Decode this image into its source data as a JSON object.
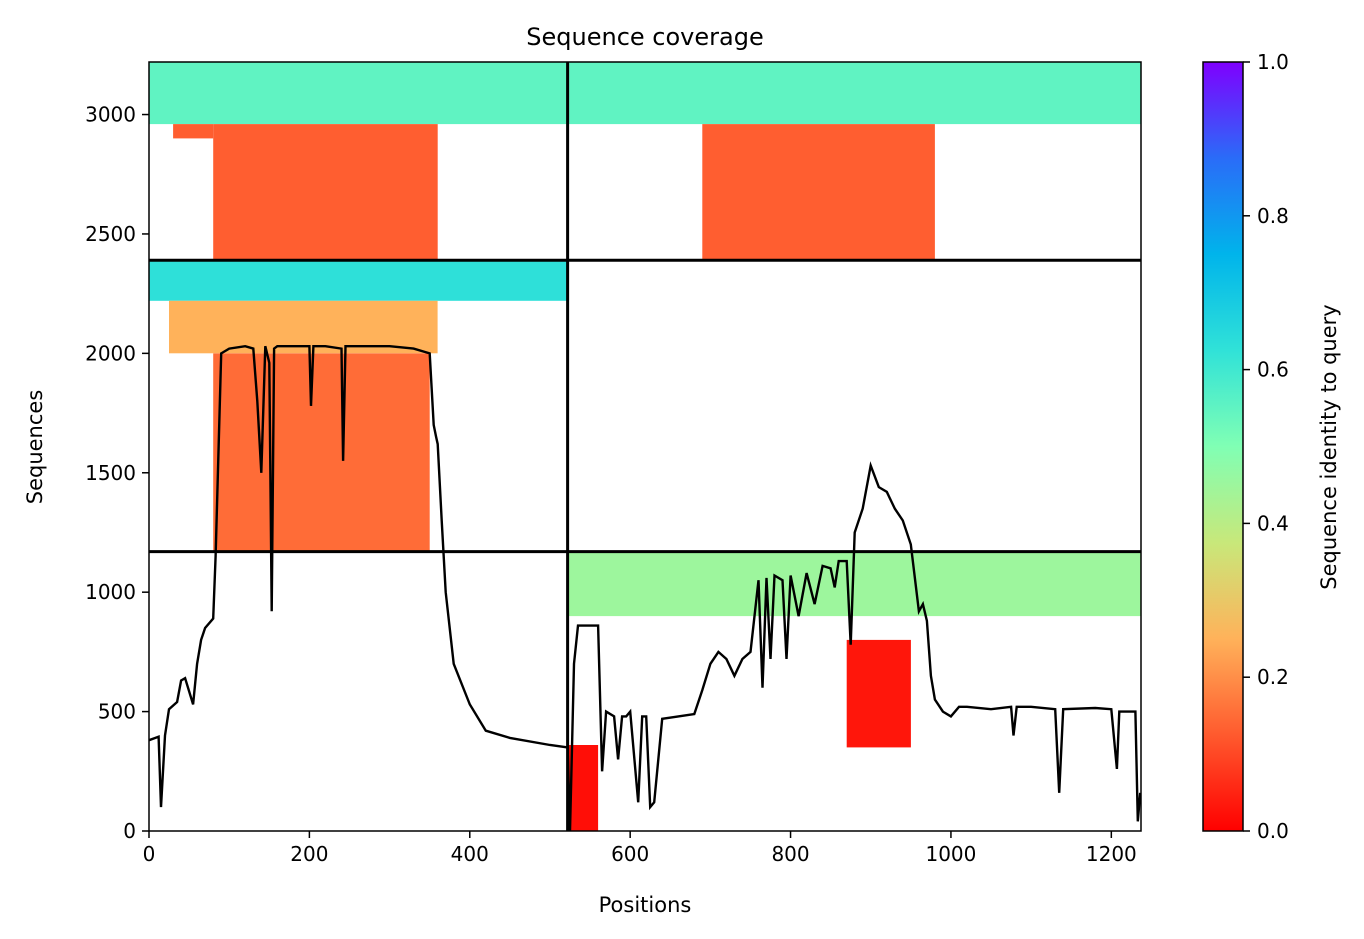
{
  "chart_data": {
    "type": "heatmap",
    "title": "Sequence coverage",
    "xlabel": "Positions",
    "ylabel": "Sequences",
    "xlim": [
      0,
      1237
    ],
    "ylim": [
      0,
      3220
    ],
    "xticks": [
      0,
      200,
      400,
      600,
      800,
      1000,
      1200
    ],
    "yticks": [
      0,
      500,
      1000,
      1500,
      2000,
      2500,
      3000
    ],
    "colorbar": {
      "label": "Sequence identity to query",
      "colormap": "rainbow_r",
      "range": [
        0,
        1
      ],
      "ticks": [
        "0.0",
        "0.2",
        "0.4",
        "0.6",
        "0.8",
        "1.0"
      ]
    },
    "chain_boundaries": {
      "x": [
        522
      ],
      "y": [
        1170,
        2390
      ]
    },
    "blocks": [
      {
        "name": "chain-A-self-high",
        "x": [
          0,
          522
        ],
        "y": [
          2960,
          3220
        ],
        "identity": 0.55
      },
      {
        "name": "chain-A-self-low",
        "x": [
          80,
          360
        ],
        "y": [
          2390,
          2960
        ],
        "identity": 0.13
      },
      {
        "name": "chain-A-self-edge",
        "x": [
          30,
          80
        ],
        "y": [
          2900,
          2960
        ],
        "identity": 0.13
      },
      {
        "name": "chain-A-crossB-high",
        "x": [
          522,
          1237
        ],
        "y": [
          2960,
          3220
        ],
        "identity": 0.55
      },
      {
        "name": "chain-A-crossB-low",
        "x": [
          690,
          980
        ],
        "y": [
          2390,
          2960
        ],
        "identity": 0.13
      },
      {
        "name": "chain-B-high",
        "x": [
          0,
          522
        ],
        "y": [
          2220,
          2390
        ],
        "identity": 0.63
      },
      {
        "name": "chain-B-mid",
        "x": [
          25,
          360
        ],
        "y": [
          2000,
          2220
        ],
        "identity": 0.25
      },
      {
        "name": "chain-B-low",
        "x": [
          80,
          350
        ],
        "y": [
          1170,
          2000
        ],
        "identity": 0.15
      },
      {
        "name": "chain-C-high",
        "x": [
          522,
          1237
        ],
        "y": [
          900,
          1170
        ],
        "identity": 0.45
      },
      {
        "name": "chain-C-low-1",
        "x": [
          522,
          560
        ],
        "y": [
          0,
          360
        ],
        "identity": 0.02
      },
      {
        "name": "chain-C-low-2",
        "x": [
          870,
          950
        ],
        "y": [
          350,
          800
        ],
        "identity": 0.03
      }
    ],
    "coverage_line": {
      "name": "coverage",
      "color": "#000000",
      "x": [
        0,
        8,
        12,
        15,
        20,
        25,
        35,
        40,
        45,
        55,
        60,
        65,
        70,
        80,
        83,
        90,
        100,
        120,
        130,
        135,
        140,
        145,
        150,
        153,
        156,
        160,
        180,
        200,
        202,
        205,
        220,
        240,
        242,
        245,
        260,
        300,
        330,
        350,
        355,
        358,
        360,
        365,
        370,
        380,
        400,
        420,
        450,
        500,
        522,
        525,
        530,
        535,
        540,
        545,
        550,
        560,
        565,
        570,
        580,
        585,
        590,
        595,
        600,
        610,
        615,
        620,
        625,
        630,
        640,
        660,
        680,
        690,
        700,
        710,
        720,
        730,
        740,
        750,
        760,
        765,
        770,
        775,
        780,
        790,
        795,
        800,
        810,
        820,
        830,
        840,
        850,
        855,
        860,
        870,
        875,
        880,
        890,
        900,
        910,
        920,
        930,
        940,
        950,
        960,
        965,
        970,
        975,
        980,
        990,
        1000,
        1010,
        1020,
        1050,
        1075,
        1078,
        1082,
        1100,
        1130,
        1135,
        1140,
        1180,
        1200,
        1207,
        1210,
        1230,
        1233,
        1236
      ],
      "y": [
        380,
        390,
        395,
        100,
        400,
        510,
        540,
        630,
        640,
        530,
        700,
        800,
        850,
        890,
        1150,
        2000,
        2020,
        2030,
        2020,
        1800,
        1500,
        2030,
        1960,
        920,
        2020,
        2030,
        2030,
        2030,
        1780,
        2030,
        2030,
        2020,
        1550,
        2030,
        2030,
        2030,
        2020,
        2000,
        1700,
        1650,
        1620,
        1300,
        1000,
        700,
        530,
        420,
        390,
        360,
        350,
        0,
        700,
        860,
        860,
        860,
        860,
        860,
        250,
        500,
        480,
        300,
        480,
        480,
        500,
        120,
        480,
        480,
        100,
        120,
        470,
        480,
        490,
        590,
        700,
        750,
        720,
        650,
        720,
        750,
        1050,
        600,
        1060,
        720,
        1070,
        1050,
        720,
        1070,
        900,
        1080,
        950,
        1110,
        1100,
        1020,
        1130,
        1130,
        780,
        1250,
        1350,
        1530,
        1440,
        1420,
        1350,
        1300,
        1200,
        920,
        950,
        880,
        650,
        550,
        500,
        480,
        520,
        520,
        510,
        520,
        400,
        520,
        520,
        510,
        160,
        510,
        515,
        510,
        260,
        500,
        500,
        40,
        160
      ]
    }
  }
}
